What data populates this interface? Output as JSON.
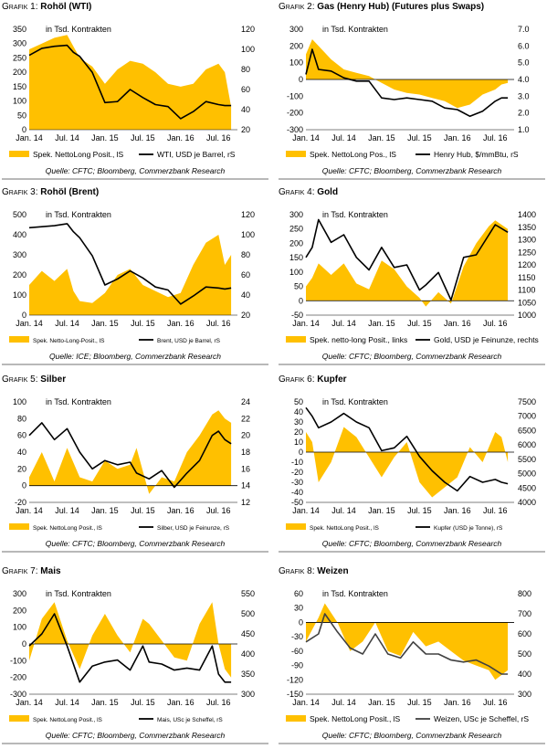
{
  "chart_data": [
    {
      "type": "area",
      "number": "Grafik 1",
      "title": "Rohöl (WTI)",
      "unit_label": "in Tsd. Kontrakten",
      "x_tick_labels": [
        "Jan. 14",
        "Jul. 14",
        "Jan. 15",
        "Jul. 15",
        "Jan. 16",
        "Jul. 16"
      ],
      "left_axis": {
        "range": [
          0,
          350
        ],
        "ticks": [
          0,
          50,
          100,
          150,
          200,
          250,
          300,
          350
        ]
      },
      "right_axis": {
        "range": [
          20,
          120
        ],
        "ticks": [
          20,
          40,
          60,
          80,
          100,
          120
        ]
      },
      "x": [
        "2014-01",
        "2014-03",
        "2014-05",
        "2014-07",
        "2014-08",
        "2014-09",
        "2014-11",
        "2015-01",
        "2015-03",
        "2015-05",
        "2015-07",
        "2015-09",
        "2015-11",
        "2016-01",
        "2016-03",
        "2016-05",
        "2016-07",
        "2016-08",
        "2016-09"
      ],
      "series": [
        {
          "name": "Spek. NettoLong Posit., lS",
          "kind": "area",
          "axis": "left",
          "color": "#ffc000",
          "values": [
            280,
            300,
            320,
            330,
            290,
            250,
            220,
            160,
            210,
            240,
            230,
            200,
            160,
            150,
            160,
            210,
            230,
            200,
            80
          ]
        },
        {
          "name": "WTI, USD je Barrel, rS",
          "kind": "line",
          "axis": "right",
          "color": "#000000",
          "values": [
            94,
            101,
            103,
            104,
            97,
            93,
            77,
            47,
            48,
            60,
            52,
            45,
            43,
            31,
            38,
            48,
            45,
            44,
            44
          ]
        }
      ],
      "source": "Quelle: CFTC; Bloomberg, Commerzbank Research"
    },
    {
      "type": "area",
      "number": "Grafik 2",
      "title": "Gas (Henry Hub) (Futures plus Swaps)",
      "unit_label": "in Tsd. Kontrakten",
      "x_tick_labels": [
        "Jan. 14",
        "Jul. 14",
        "Jan. 15",
        "Jul. 15",
        "Jan. 16",
        "Jul. 16"
      ],
      "left_axis": {
        "range": [
          -300,
          300
        ],
        "ticks": [
          -300,
          -200,
          -100,
          0,
          100,
          200,
          300
        ]
      },
      "right_axis": {
        "range": [
          1.0,
          7.0
        ],
        "ticks": [
          "1.0",
          "2.0",
          "3.0",
          "4.0",
          "5.0",
          "6.0",
          "7.0"
        ]
      },
      "x": [
        "2014-01",
        "2014-02",
        "2014-03",
        "2014-05",
        "2014-07",
        "2014-09",
        "2014-11",
        "2015-01",
        "2015-03",
        "2015-05",
        "2015-07",
        "2015-09",
        "2015-11",
        "2016-01",
        "2016-03",
        "2016-05",
        "2016-07",
        "2016-08",
        "2016-09"
      ],
      "series": [
        {
          "name": "Spek. NettoLong Pos., lS",
          "kind": "area",
          "axis": "left",
          "color": "#ffc000",
          "values": [
            150,
            240,
            200,
            120,
            60,
            40,
            20,
            -20,
            -60,
            -80,
            -90,
            -110,
            -130,
            -170,
            -150,
            -90,
            -60,
            -30,
            -20
          ]
        },
        {
          "name": "Henry Hub, $/mmBtu, rS",
          "kind": "line",
          "axis": "right",
          "color": "#000000",
          "values": [
            4.3,
            5.8,
            4.6,
            4.5,
            4.1,
            3.9,
            3.9,
            2.9,
            2.8,
            2.9,
            2.8,
            2.7,
            2.3,
            2.2,
            1.8,
            2.1,
            2.7,
            2.9,
            2.9
          ]
        },
        {
          "name": "",
          "kind": "line",
          "axis": "right",
          "color": "#000000",
          "values": [
            4.3,
            5.8,
            4.6,
            4.5,
            4.1,
            3.9,
            3.9,
            2.9,
            2.8,
            2.9,
            2.8,
            2.7,
            2.3,
            2.2,
            1.8,
            2.1,
            2.7,
            2.9,
            2.9
          ]
        }
      ],
      "source": "Quelle: CFTC; Bloomberg, Commerzbank Research"
    },
    {
      "type": "area",
      "number": "Grafik 3",
      "title": "Rohöl (Brent)",
      "unit_label": "in Tsd. Kontrakten",
      "x_tick_labels": [
        "Jan. 14",
        "Jul. 14",
        "Jan. 15",
        "Jul. 15",
        "Jan. 16",
        "Jul. 16"
      ],
      "left_axis": {
        "range": [
          0,
          500
        ],
        "ticks": [
          0,
          100,
          200,
          300,
          400,
          500
        ]
      },
      "right_axis": {
        "range": [
          20,
          120
        ],
        "ticks": [
          20,
          40,
          60,
          80,
          100,
          120
        ]
      },
      "x": [
        "2014-01",
        "2014-03",
        "2014-05",
        "2014-07",
        "2014-08",
        "2014-09",
        "2014-11",
        "2015-01",
        "2015-03",
        "2015-05",
        "2015-07",
        "2015-09",
        "2015-11",
        "2016-01",
        "2016-03",
        "2016-05",
        "2016-07",
        "2016-08",
        "2016-09"
      ],
      "series": [
        {
          "name": "Spek. Netto-Long-Posit., lS",
          "kind": "area",
          "axis": "left",
          "color": "#ffc000",
          "values": [
            150,
            220,
            170,
            230,
            120,
            70,
            60,
            110,
            200,
            230,
            150,
            120,
            90,
            110,
            250,
            360,
            400,
            250,
            300
          ]
        },
        {
          "name": "Brent, USD je Barrel, rS",
          "kind": "line",
          "axis": "right",
          "color": "#000000",
          "values": [
            107,
            108,
            109,
            111,
            103,
            97,
            79,
            50,
            56,
            64,
            57,
            48,
            45,
            31,
            39,
            48,
            47,
            46,
            47
          ]
        }
      ],
      "source": "Quelle: ICE; Bloomberg, Commerzbank Research"
    },
    {
      "type": "area",
      "number": "Grafik 4",
      "title": "Gold",
      "unit_label": "in Tsd. Kontrakten",
      "x_tick_labels": [
        "Jan. 14",
        "Jul. 14",
        "Jan. 15",
        "Jul. 15",
        "Jan. 16",
        "Jul. 16"
      ],
      "left_axis": {
        "range": [
          -50,
          300
        ],
        "ticks": [
          -50,
          0,
          50,
          100,
          150,
          200,
          250,
          300
        ]
      },
      "right_axis": {
        "range": [
          1000,
          1400
        ],
        "ticks": [
          1000,
          1050,
          1100,
          1150,
          1200,
          1250,
          1300,
          1350,
          1400
        ]
      },
      "x": [
        "2014-01",
        "2014-02",
        "2014-03",
        "2014-05",
        "2014-07",
        "2014-09",
        "2014-11",
        "2015-01",
        "2015-03",
        "2015-05",
        "2015-07",
        "2015-08",
        "2015-10",
        "2015-12",
        "2016-02",
        "2016-04",
        "2016-06",
        "2016-07",
        "2016-09"
      ],
      "series": [
        {
          "name": "Spek. netto-long Posit., links",
          "kind": "area",
          "axis": "left",
          "color": "#ffc000",
          "values": [
            50,
            80,
            130,
            90,
            130,
            60,
            40,
            140,
            110,
            50,
            10,
            -20,
            30,
            -10,
            120,
            200,
            260,
            280,
            250
          ]
        },
        {
          "name": "Gold, USD je Feinunze, rechts",
          "kind": "line",
          "axis": "right",
          "color": "#000000",
          "values": [
            1230,
            1270,
            1380,
            1290,
            1320,
            1230,
            1180,
            1270,
            1190,
            1200,
            1100,
            1120,
            1170,
            1060,
            1230,
            1240,
            1320,
            1360,
            1330
          ]
        }
      ],
      "source": "Quelle: CFTC; Bloomberg, Commerzbank Research"
    },
    {
      "type": "area",
      "number": "Grafik 5",
      "title": "Silber",
      "unit_label": "in Tsd. Kontrakten",
      "x_tick_labels": [
        "Jan. 14",
        "Jul. 14",
        "Jan. 15",
        "Jul. 15",
        "Jan. 16",
        "Jul. 16"
      ],
      "left_axis": {
        "range": [
          -20,
          100
        ],
        "ticks": [
          -20,
          0,
          20,
          40,
          60,
          80,
          100
        ]
      },
      "right_axis": {
        "range": [
          12,
          24
        ],
        "ticks": [
          12,
          14,
          16,
          18,
          20,
          22,
          24
        ]
      },
      "x": [
        "2014-01",
        "2014-03",
        "2014-05",
        "2014-07",
        "2014-09",
        "2014-11",
        "2015-01",
        "2015-03",
        "2015-05",
        "2015-06",
        "2015-08",
        "2015-10",
        "2015-12",
        "2016-02",
        "2016-04",
        "2016-06",
        "2016-07",
        "2016-08",
        "2016-09"
      ],
      "series": [
        {
          "name": "Spek. NettoLong Posit., lS",
          "kind": "area",
          "axis": "left",
          "color": "#ffc000",
          "values": [
            10,
            40,
            5,
            45,
            10,
            5,
            30,
            20,
            25,
            45,
            -10,
            10,
            5,
            40,
            60,
            85,
            90,
            80,
            75
          ]
        },
        {
          "name": "Silber, USD je Feinunze, rS",
          "kind": "line",
          "axis": "right",
          "color": "#000000",
          "values": [
            20,
            21.5,
            19.5,
            20.8,
            18,
            16,
            17,
            16.5,
            16.8,
            15.5,
            14.8,
            15.8,
            13.8,
            15.5,
            17,
            20,
            20.5,
            19.5,
            19
          ]
        }
      ],
      "source": "Quelle: CFTC; Bloomberg, Commerzbank Research"
    },
    {
      "type": "area",
      "number": "Grafik 6",
      "title": "Kupfer",
      "unit_label": "in Tsd. Kontrakten",
      "x_tick_labels": [
        "Jan. 14",
        "Jul. 14",
        "Jan. 15",
        "Jul. 15",
        "Jan. 16",
        "Jul. 16"
      ],
      "left_axis": {
        "range": [
          -50,
          50
        ],
        "ticks": [
          -50,
          -40,
          -30,
          -20,
          -10,
          0,
          10,
          20,
          30,
          40,
          50
        ]
      },
      "right_axis": {
        "range": [
          4000,
          7500
        ],
        "ticks": [
          4000,
          4500,
          5000,
          5500,
          6000,
          6500,
          7000,
          7500
        ]
      },
      "x": [
        "2014-01",
        "2014-02",
        "2014-03",
        "2014-05",
        "2014-07",
        "2014-09",
        "2014-11",
        "2015-01",
        "2015-03",
        "2015-05",
        "2015-07",
        "2015-09",
        "2015-11",
        "2016-01",
        "2016-03",
        "2016-05",
        "2016-07",
        "2016-08",
        "2016-09"
      ],
      "series": [
        {
          "name": "Spek. NettoLong Posit., lS",
          "kind": "area",
          "axis": "left",
          "color": "#ffc000",
          "values": [
            20,
            10,
            -30,
            -10,
            25,
            15,
            -5,
            -25,
            -5,
            10,
            -30,
            -45,
            -35,
            -25,
            5,
            -10,
            20,
            15,
            -10
          ]
        },
        {
          "name": "Kupfer (USD je Tonne), rS",
          "kind": "line",
          "axis": "right",
          "color": "#000000",
          "values": [
            7300,
            7000,
            6600,
            6800,
            7100,
            6800,
            6600,
            5800,
            5900,
            6300,
            5600,
            5100,
            4700,
            4400,
            4900,
            4700,
            4800,
            4700,
            4650
          ]
        }
      ],
      "source": "Quelle: CFTC; Bloomberg, Commerzbank Research"
    },
    {
      "type": "area",
      "number": "Grafik 7",
      "title": "Mais",
      "unit_label": "in Tsd. Kontrakten",
      "x_tick_labels": [
        "Jan. 14",
        "Jul. 14",
        "Jan. 15",
        "Jul. 15",
        "Jan. 16",
        "Jul. 16"
      ],
      "left_axis": {
        "range": [
          -300,
          300
        ],
        "ticks": [
          -300,
          -200,
          -100,
          0,
          100,
          200,
          300
        ]
      },
      "right_axis": {
        "range": [
          300,
          550
        ],
        "ticks": [
          300,
          350,
          400,
          450,
          500,
          550
        ]
      },
      "x": [
        "2014-01",
        "2014-03",
        "2014-05",
        "2014-07",
        "2014-09",
        "2014-11",
        "2015-01",
        "2015-03",
        "2015-05",
        "2015-07",
        "2015-08",
        "2015-10",
        "2015-12",
        "2016-02",
        "2016-04",
        "2016-06",
        "2016-07",
        "2016-08",
        "2016-09"
      ],
      "series": [
        {
          "name": "Spek. NettoLong Posit., lS",
          "kind": "area",
          "axis": "left",
          "color": "#ffc000",
          "values": [
            -100,
            150,
            250,
            20,
            -150,
            50,
            180,
            50,
            -50,
            150,
            120,
            20,
            -80,
            -100,
            120,
            250,
            0,
            -150,
            -200
          ]
        },
        {
          "name": "Mais, USc je Scheffel, rS",
          "kind": "line",
          "axis": "right",
          "color": "#000000",
          "values": [
            420,
            450,
            500,
            420,
            330,
            370,
            380,
            385,
            360,
            420,
            380,
            375,
            360,
            365,
            360,
            420,
            350,
            330,
            330
          ]
        }
      ],
      "source": "Quelle: CFTC; Bloomberg, Commerzbank Research"
    },
    {
      "type": "area",
      "number": "Grafik 8",
      "title": "Weizen",
      "unit_label": "in Tsd. Kontrakten",
      "x_tick_labels": [
        "Jan. 14",
        "Jul. 14",
        "Jan. 15",
        "Jul. 15",
        "Jan. 16",
        "Jul. 16"
      ],
      "left_axis": {
        "range": [
          -150,
          60
        ],
        "ticks": [
          -150,
          -120,
          -90,
          -60,
          -30,
          0,
          30,
          60
        ]
      },
      "right_axis": {
        "range": [
          300,
          800
        ],
        "ticks": [
          300,
          400,
          500,
          600,
          700,
          800
        ]
      },
      "x": [
        "2014-01",
        "2014-03",
        "2014-04",
        "2014-06",
        "2014-08",
        "2014-10",
        "2014-12",
        "2015-02",
        "2015-04",
        "2015-06",
        "2015-08",
        "2015-10",
        "2015-12",
        "2016-02",
        "2016-04",
        "2016-06",
        "2016-07",
        "2016-08",
        "2016-09"
      ],
      "series": [
        {
          "name": "Spek. NettoLong Posit., lS",
          "kind": "area",
          "axis": "left",
          "color": "#ffc000",
          "values": [
            -40,
            10,
            40,
            0,
            -60,
            -40,
            0,
            -60,
            -70,
            -20,
            -50,
            -40,
            -60,
            -80,
            -90,
            -100,
            -120,
            -110,
            -100
          ]
        },
        {
          "name": "Weizen, USc je Scheffel, rS",
          "kind": "line",
          "axis": "right",
          "color": "#404040",
          "values": [
            560,
            600,
            700,
            610,
            530,
            500,
            600,
            500,
            480,
            560,
            500,
            500,
            470,
            460,
            470,
            440,
            420,
            400,
            400
          ]
        }
      ],
      "source": "Quelle: CFTC; Bloomberg, Commerzbank Research"
    }
  ]
}
